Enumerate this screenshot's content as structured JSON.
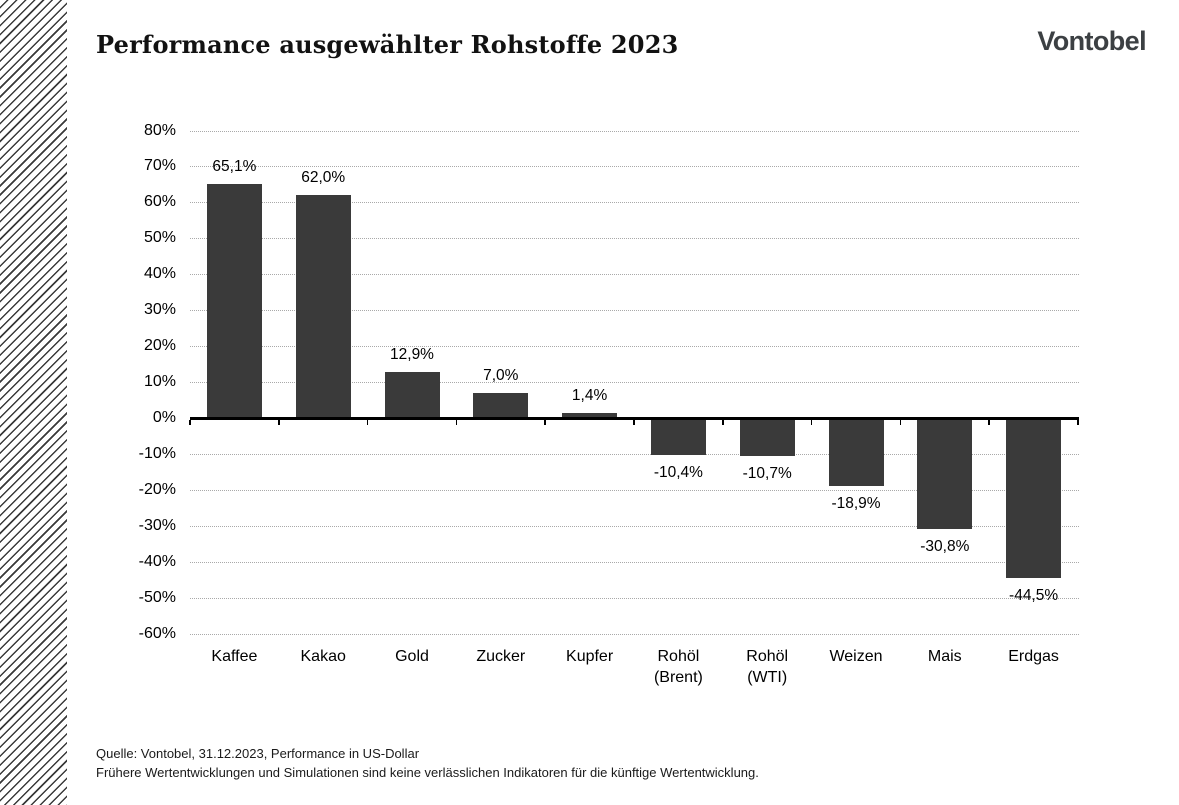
{
  "header": {
    "title": "Performance ausgewählter Rohstoffe 2023",
    "logo": "Vontobel"
  },
  "chart_data": {
    "type": "bar",
    "title": "Performance ausgewählter Rohstoffe 2023",
    "categories": [
      "Kaffee",
      "Kakao",
      "Gold",
      "Zucker",
      "Kupfer",
      "Rohöl (Brent)",
      "Rohöl (WTI)",
      "Weizen",
      "Mais",
      "Erdgas"
    ],
    "category_display": [
      "Kaffee",
      "Kakao",
      "Gold",
      "Zucker",
      "Kupfer",
      "Rohöl\n(Brent)",
      "Rohöl\n(WTI)",
      "Weizen",
      "Mais",
      "Erdgas"
    ],
    "values": [
      65.1,
      62.0,
      12.9,
      7.0,
      1.4,
      -10.4,
      -10.7,
      -18.9,
      -30.8,
      -44.5
    ],
    "value_labels": [
      "65,1%",
      "62,0%",
      "12,9%",
      "7,0%",
      "1,4%",
      "-10,4%",
      "-10,7%",
      "-18,9%",
      "-30,8%",
      "-44,5%"
    ],
    "xlabel": "",
    "ylabel": "",
    "ylim": [
      -60,
      80
    ],
    "ytick_step": 10,
    "ytick_labels": [
      "80%",
      "70%",
      "60%",
      "50%",
      "40%",
      "30%",
      "20%",
      "10%",
      "0%",
      "-10%",
      "-20%",
      "-30%",
      "-40%",
      "-50%",
      "-60%"
    ],
    "grid": "horizontal-dotted",
    "legend": "none",
    "unit": "%"
  },
  "footer": {
    "source": "Quelle: Vontobel, 31.12.2023, Performance in US-Dollar",
    "disclaimer": "Frühere Wertentwicklungen und Simulationen sind keine verlässlichen Indikatoren für die künftige Wertentwicklung."
  },
  "colors": {
    "bar": "#3a3a3a",
    "axis": "#000000",
    "gridline": "#a9a9a9",
    "logo": "#3c4043",
    "text": "#1a1a1a",
    "background": "#ffffff"
  }
}
